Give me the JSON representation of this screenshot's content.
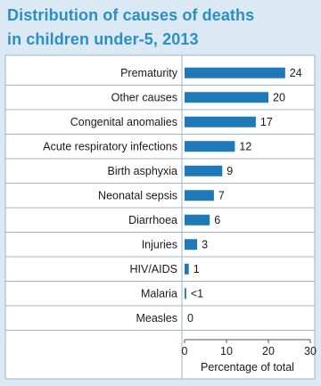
{
  "title": {
    "line1": "Distribution of causes of deaths",
    "line2": "in children under-5, 2013"
  },
  "colors": {
    "background": "#dbe9f4",
    "title": "#2b8fc6",
    "bar": "#1f78b8",
    "panel": "#ffffff",
    "grid": "#9fb4c6"
  },
  "chart_data": {
    "type": "bar",
    "orientation": "horizontal",
    "categories": [
      "Prematurity",
      "Other causes",
      "Congenital anomalies",
      "Acute respiratory infections",
      "Birth asphyxia",
      "Neonatal sepsis",
      "Diarrhoea",
      "Injuries",
      "HIV/AIDS",
      "Malaria",
      "Measles"
    ],
    "values": [
      24,
      20,
      17,
      12,
      9,
      7,
      6,
      3,
      1,
      0.4,
      0
    ],
    "value_labels": [
      "24",
      "20",
      "17",
      "12",
      "9",
      "7",
      "6",
      "3",
      "1",
      "<1",
      "0"
    ],
    "xlabel": "Percentage of total",
    "xlim": [
      0,
      30
    ],
    "xticks": [
      0,
      10,
      20,
      30
    ],
    "grid": "horizontal row separators"
  }
}
